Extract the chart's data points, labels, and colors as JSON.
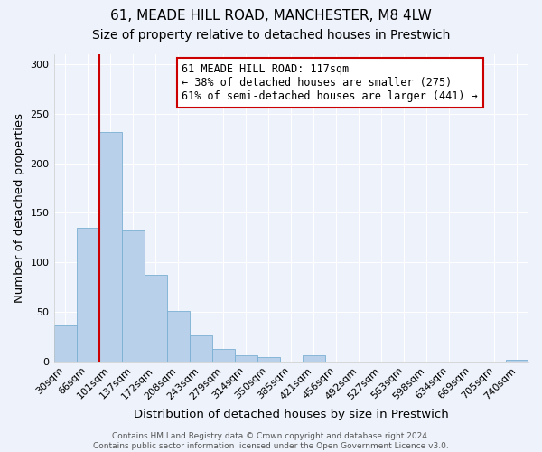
{
  "title": "61, MEADE HILL ROAD, MANCHESTER, M8 4LW",
  "subtitle": "Size of property relative to detached houses in Prestwich",
  "xlabel": "Distribution of detached houses by size in Prestwich",
  "ylabel": "Number of detached properties",
  "bar_color": "#b8d0ea",
  "bar_edge_color": "#7aafd4",
  "bin_labels": [
    "30sqm",
    "66sqm",
    "101sqm",
    "137sqm",
    "172sqm",
    "208sqm",
    "243sqm",
    "279sqm",
    "314sqm",
    "350sqm",
    "385sqm",
    "421sqm",
    "456sqm",
    "492sqm",
    "527sqm",
    "563sqm",
    "598sqm",
    "634sqm",
    "669sqm",
    "705sqm",
    "740sqm"
  ],
  "bar_heights": [
    36,
    135,
    232,
    133,
    87,
    51,
    26,
    13,
    6,
    4,
    0,
    6,
    0,
    0,
    0,
    0,
    0,
    0,
    0,
    0,
    2
  ],
  "ylim": [
    0,
    310
  ],
  "yticks": [
    0,
    50,
    100,
    150,
    200,
    250,
    300
  ],
  "vline_x_bar_index": 2,
  "vline_color": "#cc0000",
  "annotation_line1": "61 MEADE HILL ROAD: 117sqm",
  "annotation_line2": "← 38% of detached houses are smaller (275)",
  "annotation_line3": "61% of semi-detached houses are larger (441) →",
  "annotation_box_facecolor": "#ffffff",
  "annotation_box_edgecolor": "#cc0000",
  "footer_line1": "Contains HM Land Registry data © Crown copyright and database right 2024.",
  "footer_line2": "Contains public sector information licensed under the Open Government Licence v3.0.",
  "background_color": "#eef2fa",
  "grid_color": "#ffffff",
  "title_fontsize": 11,
  "subtitle_fontsize": 10,
  "axis_label_fontsize": 9.5,
  "tick_fontsize": 8,
  "annotation_fontsize": 8.5,
  "footer_fontsize": 6.5
}
